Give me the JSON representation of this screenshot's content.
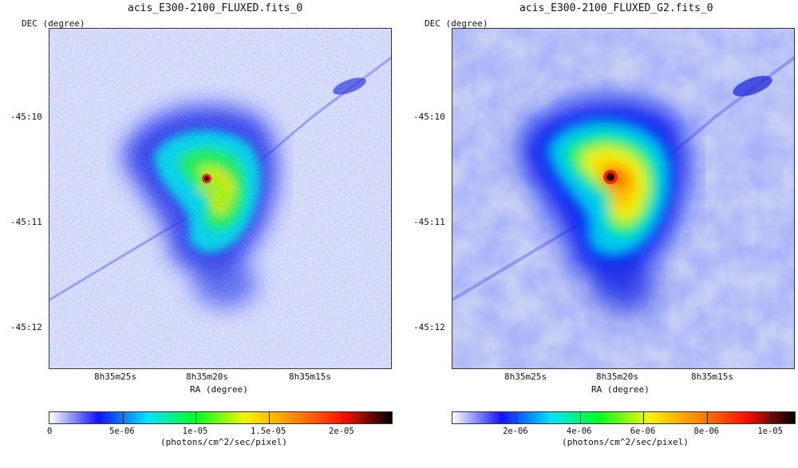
{
  "chart_data": [
    {
      "type": "heatmap",
      "title": "acis_E300-2100_FLUXED.fits_0",
      "ylabel": "DEC (degree)",
      "xlabel": "RA (degree)",
      "y_ticks": [
        "-45:10",
        "-45:11",
        "-45:12"
      ],
      "x_ticks": [
        "8h35m25s",
        "8h35m20s",
        "8h35m15s"
      ],
      "colorbar": {
        "label": "(photons/cm^2/sec/pixel)",
        "range": [
          0,
          2.35e-05
        ],
        "ticks": [
          {
            "value": 0,
            "label": "0"
          },
          {
            "value": 5e-06,
            "label": "5e-06"
          },
          {
            "value": 1e-05,
            "label": "1e-05"
          },
          {
            "value": 1.5e-05,
            "label": "1.5e-05"
          },
          {
            "value": 2e-05,
            "label": "2e-05"
          }
        ],
        "colormap": [
          "#ffffff",
          "#1111ff",
          "#00e5ff",
          "#00ff20",
          "#f5f500",
          "#ff8a00",
          "#ff1000",
          "#000000"
        ]
      },
      "smoothed": false
    },
    {
      "type": "heatmap",
      "title": "acis_E300-2100_FLUXED_G2.fits_0",
      "ylabel": "DEC (degree)",
      "xlabel": "RA (degree)",
      "y_ticks": [
        "-45:10",
        "-45:11",
        "-45:12"
      ],
      "x_ticks": [
        "8h35m25s",
        "8h35m20s",
        "8h35m15s"
      ],
      "colorbar": {
        "label": "(photons/cm^2/sec/pixel)",
        "range": [
          0,
          1.08e-05
        ],
        "ticks": [
          {
            "value": 2e-06,
            "label": "2e-06"
          },
          {
            "value": 4e-06,
            "label": "4e-06"
          },
          {
            "value": 6e-06,
            "label": "6e-06"
          },
          {
            "value": 8e-06,
            "label": "8e-06"
          },
          {
            "value": 1e-05,
            "label": "1e-05"
          }
        ],
        "colormap": [
          "#ffffff",
          "#1111ff",
          "#00e5ff",
          "#00ff20",
          "#f5f500",
          "#ff8a00",
          "#ff1000",
          "#000000"
        ]
      },
      "smoothed": true
    }
  ]
}
